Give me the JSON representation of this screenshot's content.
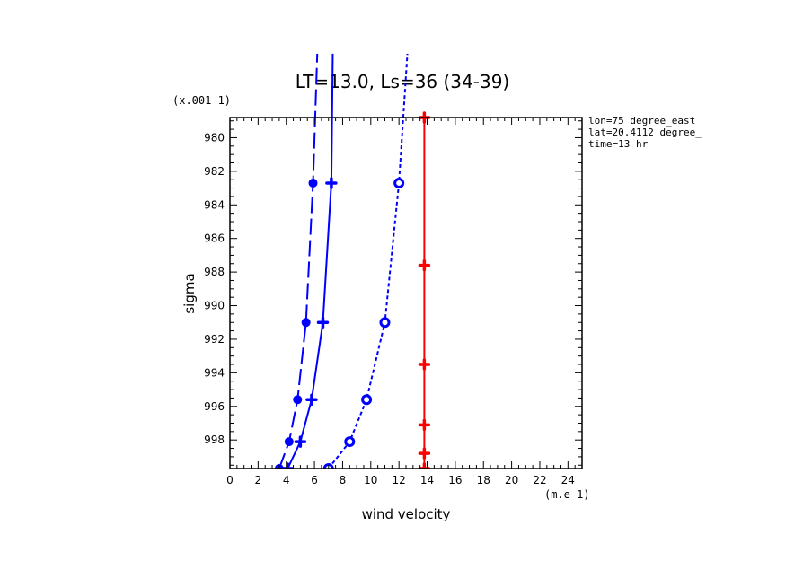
{
  "chart_data": {
    "type": "line",
    "title": "LT=13.0, Ls=36 (34-39)",
    "xlabel": "wind velocity",
    "ylabel": "sigma",
    "x_unit": "(m.e-1)",
    "y_unit": "(x.001 1)",
    "xlim": [
      0,
      25
    ],
    "ylim": [
      999.7,
      978.8
    ],
    "x_ticks": [
      0,
      2,
      4,
      6,
      8,
      10,
      12,
      14,
      16,
      18,
      20,
      22,
      24
    ],
    "y_ticks": [
      980,
      982,
      984,
      986,
      988,
      990,
      992,
      994,
      996,
      998
    ],
    "info": [
      "lon=75 degree_east",
      "lat=20.4112 degree_",
      "time=13 hr"
    ],
    "grid": false,
    "series": [
      {
        "color": "#0000ff",
        "line": "long-dash",
        "marker": "filled-circle",
        "points": [
          [
            3.5,
            999.7
          ],
          [
            4.2,
            998.1
          ],
          [
            4.8,
            995.6
          ],
          [
            5.4,
            991.0
          ],
          [
            5.9,
            982.7
          ],
          [
            6.2,
            975.0
          ]
        ]
      },
      {
        "color": "#0000ff",
        "line": "solid",
        "marker": "plus",
        "points": [
          [
            4.1,
            999.7
          ],
          [
            5.0,
            998.1
          ],
          [
            5.8,
            995.6
          ],
          [
            6.6,
            991.0
          ],
          [
            7.2,
            982.7
          ],
          [
            7.3,
            975.0
          ]
        ]
      },
      {
        "color": "#0000ff",
        "line": "short-dash",
        "marker": "ring",
        "points": [
          [
            7.0,
            999.7
          ],
          [
            8.5,
            998.1
          ],
          [
            9.7,
            995.6
          ],
          [
            11.0,
            991.0
          ],
          [
            12.0,
            982.7
          ],
          [
            12.6,
            975.0
          ]
        ]
      },
      {
        "color": "#ff0000",
        "line": "solid",
        "marker": "plus",
        "points": [
          [
            13.8,
            999.7
          ],
          [
            13.8,
            998.8
          ],
          [
            13.8,
            997.1
          ],
          [
            13.8,
            993.5
          ],
          [
            13.8,
            987.6
          ],
          [
            13.8,
            978.8
          ]
        ]
      }
    ]
  }
}
